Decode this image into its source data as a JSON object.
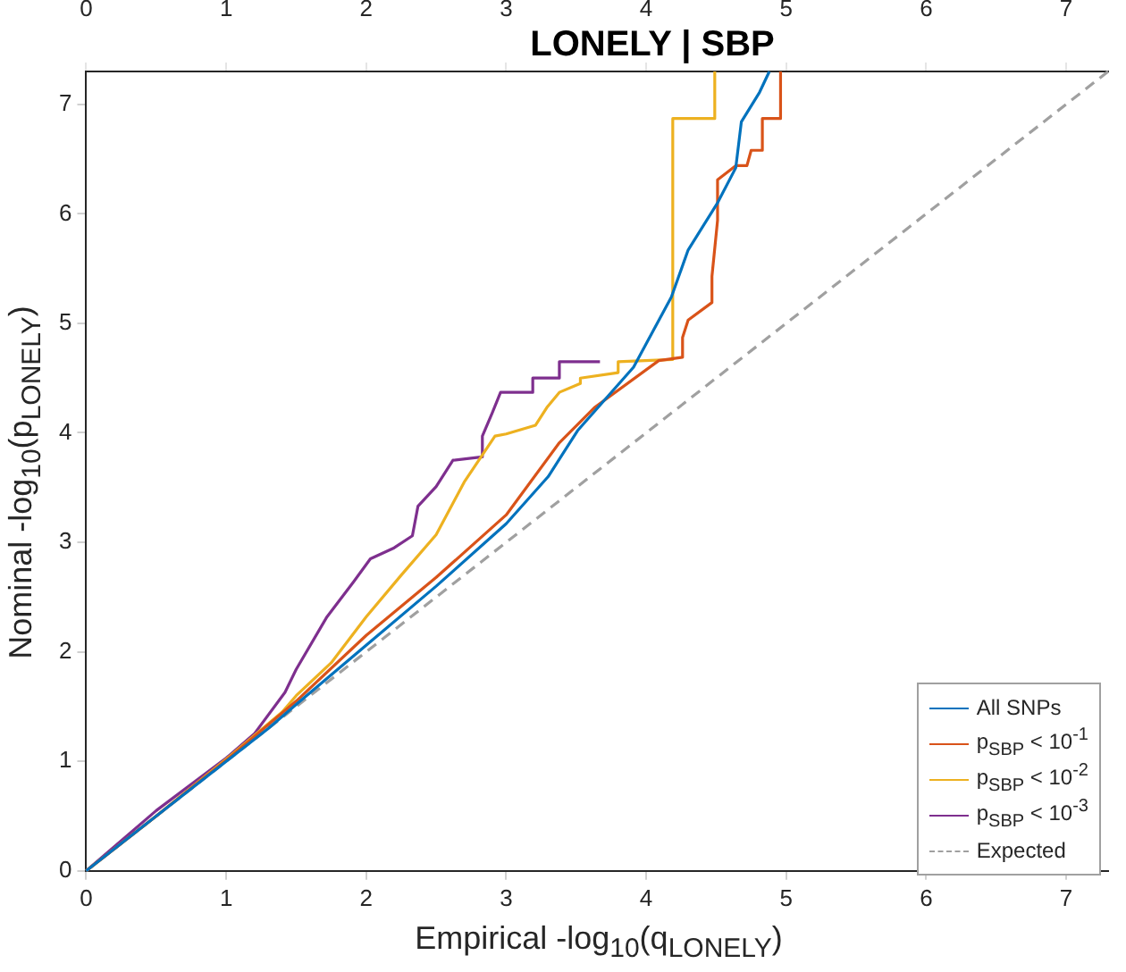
{
  "chart_data": {
    "type": "line",
    "title": "LONELY | SBP",
    "xlabel": "Empirical -log$_{10}$(q$_{LONELY}$)",
    "ylabel": "Nominal -log$_{10}$(p$_{LONELY}$)",
    "xlim": [
      0,
      7.3
    ],
    "ylim": [
      0,
      7.3
    ],
    "xticks": [
      0,
      1,
      2,
      3,
      4,
      5,
      6,
      7
    ],
    "yticks": [
      0,
      1,
      2,
      3,
      4,
      5,
      6,
      7
    ],
    "x2lim": [
      0,
      7.3
    ],
    "x2ticks": [
      0,
      1,
      2,
      3,
      4,
      5,
      6,
      7
    ],
    "grid": false,
    "legend": "bottom right",
    "marker": "none",
    "series": [
      {
        "name": "All SNPs",
        "color": "#0072bd",
        "x": [
          0,
          0.5,
          1,
          1.3,
          1.5,
          2,
          2.5,
          3,
          3.3,
          3.51,
          3.91,
          4.18,
          4.3,
          4.51,
          4.64,
          4.68,
          4.81,
          4.88
        ],
        "values": [
          0,
          0.5,
          1,
          1.3,
          1.52,
          2.06,
          2.6,
          3.17,
          3.6,
          4.02,
          4.6,
          5.24,
          5.67,
          6.1,
          6.42,
          6.84,
          7.11,
          7.3
        ]
      },
      {
        "name": "p$_{SBP}$ < 10$^{-1}$",
        "color": "#d95319",
        "x": [
          0,
          0.5,
          1,
          1.5,
          2,
          2.5,
          3,
          3.38,
          3.63,
          4.09,
          4.26,
          4.26,
          4.3,
          4.47,
          4.47,
          4.51,
          4.51,
          4.64,
          4.72,
          4.75,
          4.83,
          4.83,
          4.96,
          4.96
        ],
        "values": [
          0,
          0.5,
          1.01,
          1.55,
          2.15,
          2.68,
          3.25,
          3.91,
          4.23,
          4.66,
          4.69,
          4.87,
          5.03,
          5.19,
          5.43,
          5.94,
          6.31,
          6.44,
          6.44,
          6.58,
          6.58,
          6.87,
          6.87,
          7.3
        ]
      },
      {
        "name": "p$_{SBP}$ < 10$^{-2}$",
        "color": "#edb120",
        "x": [
          0,
          0.5,
          1,
          1.4,
          1.5,
          1.75,
          2,
          2.25,
          2.5,
          2.7,
          2.92,
          3.0,
          3.21,
          3.29,
          3.38,
          3.53,
          3.53,
          3.8,
          3.8,
          4.19,
          4.19,
          4.49,
          4.49
        ],
        "values": [
          0,
          0.5,
          1.02,
          1.45,
          1.6,
          1.9,
          2.32,
          2.7,
          3.07,
          3.55,
          3.97,
          3.99,
          4.07,
          4.23,
          4.37,
          4.45,
          4.5,
          4.55,
          4.65,
          4.67,
          6.87,
          6.87,
          7.3
        ]
      },
      {
        "name": "p$_{SBP}$ < 10$^{-3}$",
        "color": "#7e2f8e",
        "x": [
          0,
          0.5,
          1,
          1.2,
          1.42,
          1.5,
          1.72,
          1.91,
          2.03,
          2.2,
          2.33,
          2.37,
          2.5,
          2.62,
          2.83,
          2.83,
          2.9,
          2.96,
          3.19,
          3.19,
          3.38,
          3.38,
          3.67
        ],
        "values": [
          0,
          0.55,
          1.03,
          1.25,
          1.63,
          1.84,
          2.32,
          2.64,
          2.85,
          2.95,
          3.06,
          3.33,
          3.51,
          3.75,
          3.78,
          3.97,
          4.18,
          4.37,
          4.37,
          4.5,
          4.5,
          4.65,
          4.65
        ]
      },
      {
        "name": "Expected",
        "color": "#a0a0a0",
        "line_style": "dashed",
        "x": [
          0,
          7.3
        ],
        "values": [
          0,
          7.3
        ]
      }
    ]
  }
}
